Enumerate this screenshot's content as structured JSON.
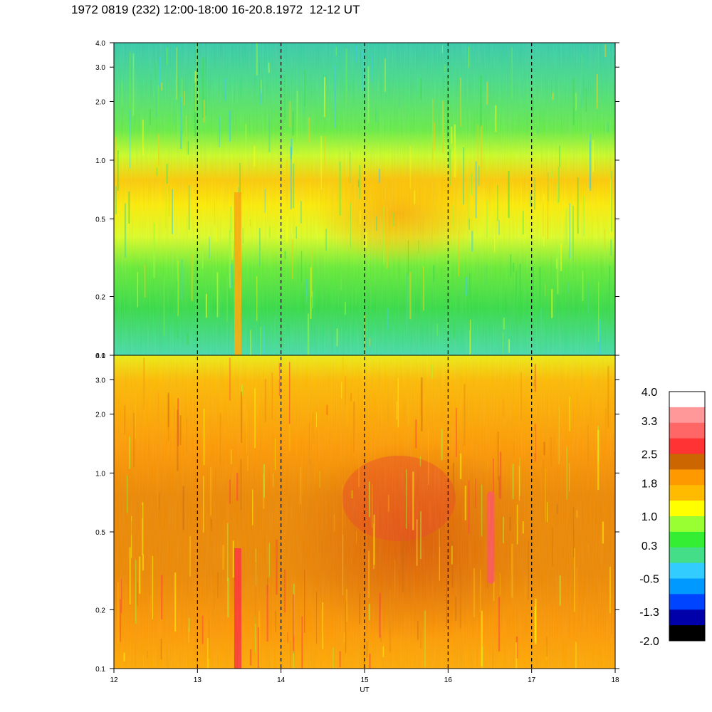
{
  "title": "1972 0819 (232) 12:00-18:00 16-20.8.1972  12-12 UT",
  "chart_data": {
    "type": "heatmap",
    "title": "1972 0819 (232) 12:00-18:00 16-20.8.1972  12-12 UT",
    "xlabel": "UT",
    "ylabel": "",
    "x_ticks": [
      "12",
      "13",
      "14",
      "15",
      "16",
      "17",
      "18"
    ],
    "x_range": [
      12,
      18
    ],
    "y_scale": "log",
    "grid": "dashed vertical lines at each hour",
    "panels": [
      {
        "name": "",
        "y_range": [
          0.1,
          4.0
        ],
        "y_ticks": [
          "4.0",
          "3.0",
          "2.0",
          "1.0",
          "0.5",
          "0.2",
          "0.1"
        ],
        "y_values": [
          4.0,
          3.0,
          2.0,
          1.0,
          0.5,
          0.2,
          0.1
        ],
        "description_levels": {
          "low_frequency_band_0.1_0.3": 0.3,
          "band_0.4_0.7": 1.0,
          "band_0.7_1.0": 1.8,
          "high_frequency_band_2_4": -0.2
        }
      },
      {
        "name": "",
        "y_range": [
          0.1,
          4.0
        ],
        "y_ticks": [
          "4.0",
          "3.0",
          "2.0",
          "1.0",
          "0.5",
          "0.2",
          "0.1"
        ],
        "y_values": [
          4.0,
          3.0,
          2.0,
          1.0,
          0.5,
          0.2,
          0.1
        ],
        "description_levels": {
          "background": 1.8,
          "enhanced_region_15_17UT": 2.5,
          "spike_13.45UT": 2.5,
          "spike_16.5UT": 3.3
        }
      }
    ],
    "colorbar": {
      "labels": [
        "4.0",
        "3.3",
        "2.5",
        "1.8",
        "1.0",
        "0.3",
        "-0.5",
        "-1.3",
        "-2.0"
      ],
      "min": -2.0,
      "max": 4.0,
      "colors": [
        "#ffffff",
        "#ff9999",
        "#ff6666",
        "#ff3333",
        "#cc6600",
        "#ff9900",
        "#ffbb00",
        "#ffff00",
        "#99ff33",
        "#33ee33",
        "#44dd88",
        "#33ccff",
        "#0099ff",
        "#0044ff",
        "#0000aa",
        "#000000"
      ]
    }
  }
}
